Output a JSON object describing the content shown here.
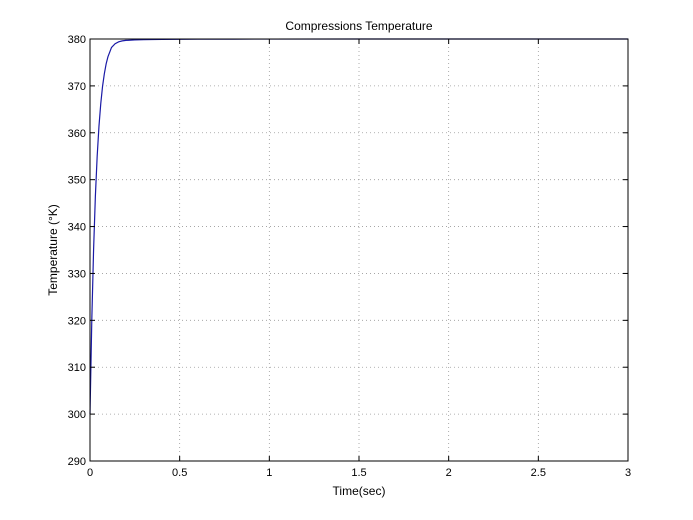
{
  "chart_data": {
    "type": "line",
    "title": "Compressions Temperature",
    "xlabel": "Time(sec)",
    "ylabel": "Temperature (°K)",
    "xlim": [
      0,
      3
    ],
    "ylim": [
      290,
      380
    ],
    "xticks": [
      0,
      0.5,
      1,
      1.5,
      2,
      2.5,
      3
    ],
    "xtick_labels": [
      "0",
      "0.5",
      "1",
      "1.5",
      "2",
      "2.5",
      "3"
    ],
    "yticks": [
      290,
      300,
      310,
      320,
      330,
      340,
      350,
      360,
      370,
      380
    ],
    "ytick_labels": [
      "290",
      "300",
      "310",
      "320",
      "330",
      "340",
      "350",
      "360",
      "370",
      "380"
    ],
    "grid": true,
    "series": [
      {
        "color": "#1a1aa6",
        "x": [
          0,
          0.01,
          0.02,
          0.03,
          0.04,
          0.05,
          0.06,
          0.07,
          0.08,
          0.09,
          0.1,
          0.12,
          0.14,
          0.16,
          0.18,
          0.2,
          0.25,
          0.3,
          0.35,
          0.4,
          0.5,
          0.6,
          0.8,
          1.0,
          1.5,
          2.0,
          2.5,
          3.0
        ],
        "y": [
          300,
          320.0,
          335.1,
          346.5,
          355.0,
          361.4,
          366.2,
          369.9,
          372.6,
          374.7,
          376.2,
          378.2,
          379.0,
          379.4,
          379.6,
          379.7,
          379.8,
          379.85,
          379.9,
          379.92,
          379.95,
          379.97,
          379.98,
          379.99,
          380,
          380,
          380,
          380
        ]
      }
    ]
  }
}
